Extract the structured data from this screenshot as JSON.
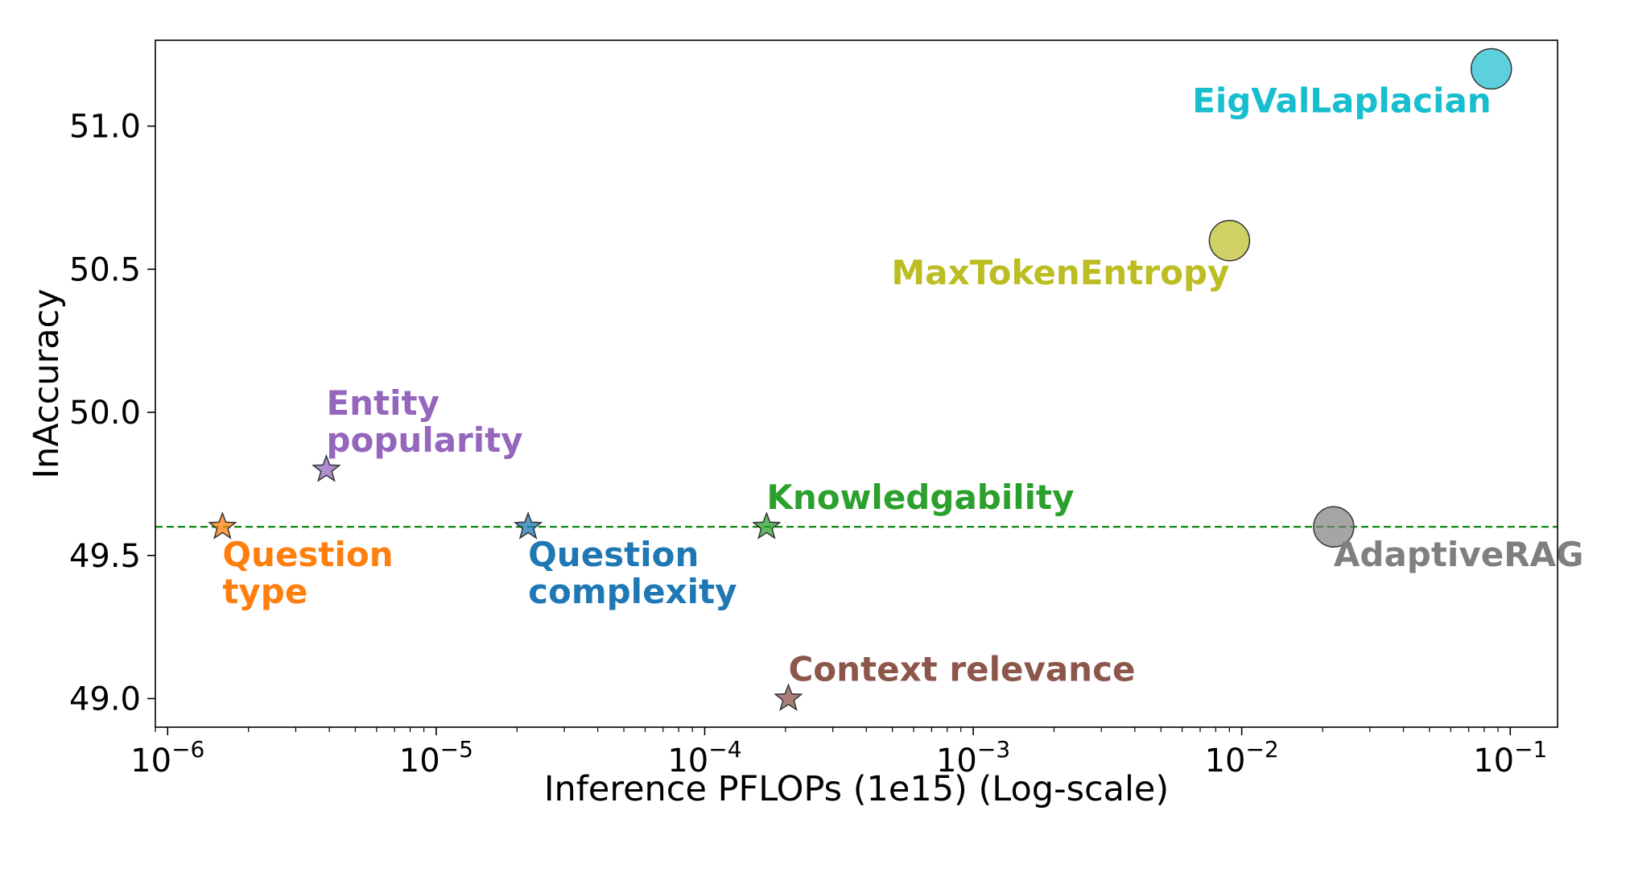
{
  "chart_data": {
    "type": "scatter",
    "title": "",
    "xlabel": "Inference PFLOPs (1e15) (Log-scale)",
    "ylabel": "InAccuracy",
    "xscale": "log",
    "xlim": [
      9e-07,
      0.15
    ],
    "ylim": [
      48.9,
      51.3
    ],
    "grid": false,
    "x_ticks": [
      {
        "value": 1e-06,
        "base": "10",
        "exp": "−6"
      },
      {
        "value": 1e-05,
        "base": "10",
        "exp": "−5"
      },
      {
        "value": 0.0001,
        "base": "10",
        "exp": "−4"
      },
      {
        "value": 0.001,
        "base": "10",
        "exp": "−3"
      },
      {
        "value": 0.01,
        "base": "10",
        "exp": "−2"
      },
      {
        "value": 0.1,
        "base": "10",
        "exp": "−1"
      }
    ],
    "y_ticks": [
      {
        "value": 49.0,
        "label": "49.0"
      },
      {
        "value": 49.5,
        "label": "49.5"
      },
      {
        "value": 50.0,
        "label": "50.0"
      },
      {
        "value": 50.5,
        "label": "50.5"
      },
      {
        "value": 51.0,
        "label": "51.0"
      }
    ],
    "reference_line": {
      "y": 49.6,
      "style": "dashed",
      "color": "#008000"
    },
    "points": [
      {
        "key": "question-type",
        "lines": [
          "Question",
          "type"
        ],
        "x": 1.6e-06,
        "y": 49.6,
        "marker": "star",
        "color": "#ff7f0e",
        "label_anchor": "below-right"
      },
      {
        "key": "entity-popularity",
        "lines": [
          "Entity",
          "popularity"
        ],
        "x": 3.9e-06,
        "y": 49.8,
        "marker": "star",
        "color": "#9467bd",
        "label_anchor": "above-right"
      },
      {
        "key": "question-complexity",
        "lines": [
          "Question",
          "complexity"
        ],
        "x": 2.2e-05,
        "y": 49.6,
        "marker": "star",
        "color": "#1f77b4",
        "label_anchor": "below-right"
      },
      {
        "key": "knowledgability",
        "lines": [
          "Knowledgability"
        ],
        "x": 0.00017,
        "y": 49.6,
        "marker": "star",
        "color": "#2ca02c",
        "label_anchor": "above-right"
      },
      {
        "key": "context-relevance",
        "lines": [
          "Context relevance"
        ],
        "x": 0.000205,
        "y": 49.0,
        "marker": "star",
        "color": "#8c564b",
        "label_anchor": "above-right"
      },
      {
        "key": "max-token-entropy",
        "lines": [
          "MaxTokenEntropy"
        ],
        "x": 0.009,
        "y": 50.6,
        "marker": "circle",
        "color": "#bcbd22",
        "label_anchor": "below-left"
      },
      {
        "key": "eig-val-laplacian",
        "lines": [
          "EigValLaplacian"
        ],
        "x": 0.085,
        "y": 51.2,
        "marker": "circle",
        "color": "#17becf",
        "label_anchor": "below-left"
      },
      {
        "key": "adaptive-rag",
        "lines": [
          "AdaptiveRAG"
        ],
        "x": 0.022,
        "y": 49.6,
        "marker": "circle",
        "color": "#7f7f7f",
        "label_anchor": "below-right"
      }
    ]
  }
}
